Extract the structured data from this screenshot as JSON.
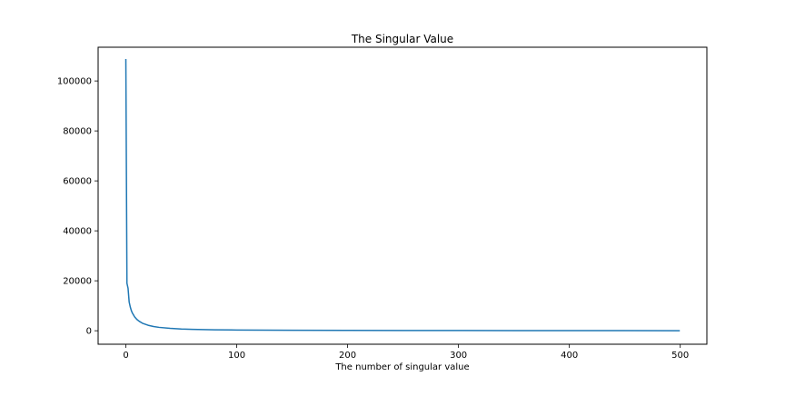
{
  "chart_data": {
    "type": "line",
    "title": "The Singular Value",
    "xlabel": "The number of singular value",
    "ylabel": "",
    "xlim": [
      -25,
      524
    ],
    "ylim": [
      -5400,
      113500
    ],
    "xticks": [
      0,
      100,
      200,
      300,
      400,
      500
    ],
    "yticks": [
      0,
      20000,
      40000,
      60000,
      80000,
      100000
    ],
    "grid": false,
    "series": [
      {
        "color": "#1f77b4",
        "x": [
          0,
          1,
          2,
          3,
          4,
          5,
          6,
          8,
          10,
          12,
          15,
          20,
          25,
          30,
          40,
          50,
          60,
          80,
          100,
          150,
          200,
          250,
          300,
          350,
          400,
          450,
          499
        ],
        "y": [
          108500,
          19000,
          17000,
          11500,
          9500,
          8000,
          7000,
          5500,
          4500,
          3800,
          3000,
          2200,
          1700,
          1350,
          950,
          700,
          560,
          390,
          290,
          180,
          130,
          100,
          80,
          65,
          50,
          40,
          30
        ]
      }
    ]
  }
}
